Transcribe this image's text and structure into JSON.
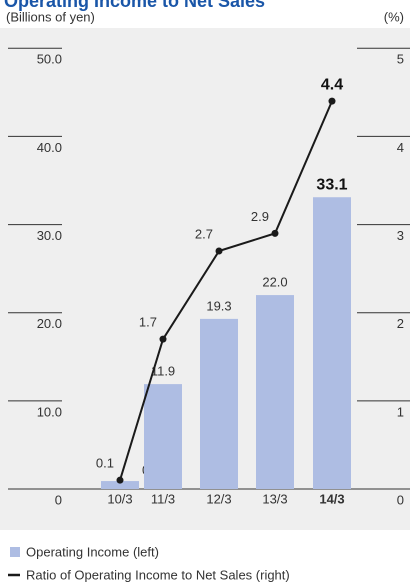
{
  "chart_data": {
    "type": "bar_line",
    "title": "Operating Income to Net Sales",
    "y_label": "(Billions of yen)",
    "y2_label": "(%)",
    "categories": [
      "10/3",
      "11/3",
      "12/3",
      "13/3",
      "14/3"
    ],
    "series": [
      {
        "name": "Operating Income (left)",
        "color": "#aebde3",
        "values": [
          0.9,
          11.9,
          19.3,
          22.0,
          33.1
        ],
        "value_labels": [
          "0.9",
          "11.9",
          "19.3",
          "22.0",
          "33.1"
        ]
      },
      {
        "name": "Ratio of Operating Income to Net Sales (right)",
        "color": "#1a1a1a",
        "axis": "y2",
        "values": [
          0.1,
          1.7,
          2.7,
          2.9,
          4.4
        ]
      }
    ],
    "ylim": [
      0,
      52.3
    ],
    "yticks": [
      0,
      {
        "value": 10,
        "label": "10.0"
      },
      {
        "value": 20,
        "label": "20.0"
      },
      {
        "value": 30,
        "label": "30.0"
      },
      {
        "value": 40,
        "label": "40.0"
      },
      {
        "value": 50,
        "label": "50.0"
      }
    ],
    "y2lim": [
      0,
      5.23
    ],
    "y2ticks": [
      0,
      1,
      2,
      3,
      4,
      5
    ]
  }
}
